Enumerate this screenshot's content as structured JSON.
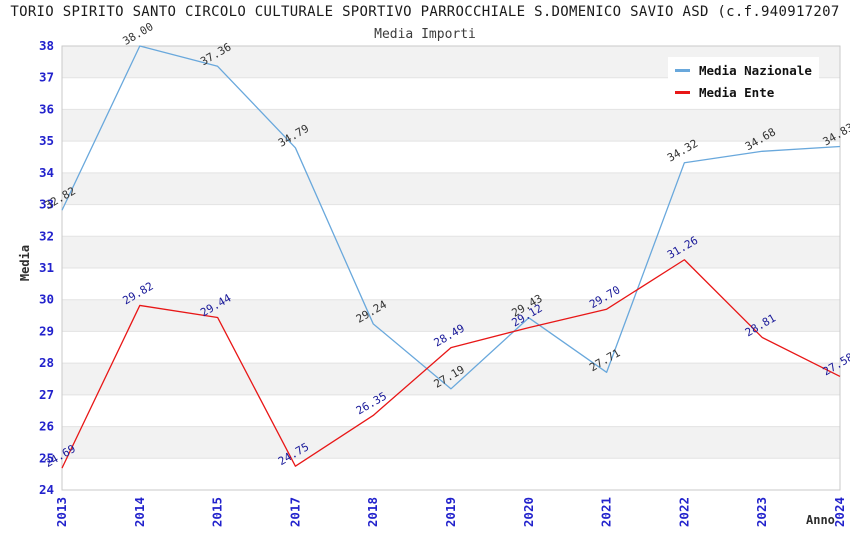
{
  "title": "TORIO SPIRITO SANTO CIRCOLO CULTURALE SPORTIVO PARROCCHIALE S.DOMENICO SAVIO ASD (c.f.940917207",
  "subtitle": "Media Importi",
  "chart_data": {
    "type": "line",
    "title": "Media Importi",
    "categories": [
      "2013",
      "2014",
      "2015",
      "2017",
      "2018",
      "2019",
      "2020",
      "2021",
      "2022",
      "2023",
      "2024"
    ],
    "series": [
      {
        "name": "Media Nazionale",
        "color": "#69a8dc",
        "label_color": "#333333",
        "values": [
          32.82,
          38.0,
          37.36,
          34.79,
          29.24,
          27.19,
          29.43,
          27.71,
          34.32,
          34.68,
          34.83
        ]
      },
      {
        "name": "Media Ente",
        "color": "#e81717",
        "label_color": "#1a1a99",
        "values": [
          24.69,
          29.82,
          29.44,
          24.75,
          26.35,
          28.49,
          29.12,
          29.7,
          31.26,
          28.81,
          27.58
        ]
      }
    ],
    "xlabel": "Anno",
    "ylabel": "Media",
    "ylim": [
      24,
      38
    ],
    "ytick_step": 1,
    "tick_color": "#2222cc",
    "grid": true,
    "legend_position": "top-right",
    "band_colors": [
      "#f2f2f2",
      "#ffffff"
    ]
  }
}
